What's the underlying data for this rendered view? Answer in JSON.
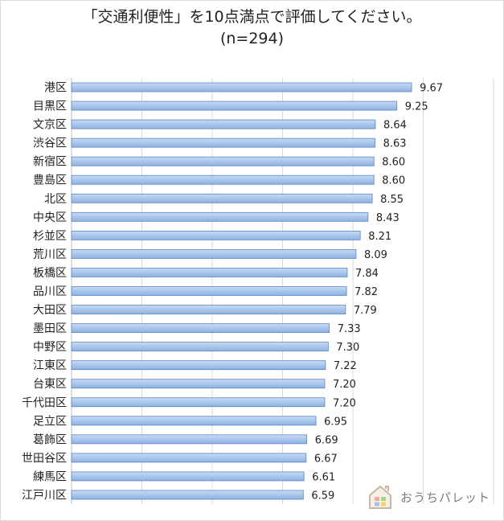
{
  "chart_data": {
    "type": "bar",
    "orientation": "horizontal",
    "title": "「交通利便性」を10点満点で評価してください。",
    "subtitle": "(n=294)",
    "categories": [
      "港区",
      "目黒区",
      "文京区",
      "渋谷区",
      "新宿区",
      "豊島区",
      "北区",
      "中央区",
      "杉並区",
      "荒川区",
      "板橋区",
      "品川区",
      "大田区",
      "墨田区",
      "中野区",
      "江東区",
      "台東区",
      "千代田区",
      "足立区",
      "葛飾区",
      "世田谷区",
      "練馬区",
      "江戸川区"
    ],
    "values": [
      9.67,
      9.25,
      8.64,
      8.63,
      8.6,
      8.6,
      8.55,
      8.43,
      8.21,
      8.09,
      7.84,
      7.82,
      7.79,
      7.33,
      7.3,
      7.22,
      7.2,
      7.2,
      6.95,
      6.69,
      6.67,
      6.61,
      6.59
    ],
    "value_labels": [
      "9.67",
      "9.25",
      "8.64",
      "8.63",
      "8.60",
      "8.60",
      "8.55",
      "8.43",
      "8.21",
      "8.09",
      "7.84",
      "7.82",
      "7.79",
      "7.33",
      "7.30",
      "7.22",
      "7.20",
      "7.20",
      "6.95",
      "6.69",
      "6.67",
      "6.61",
      "6.59"
    ],
    "xlim": [
      0,
      12
    ],
    "grid": true,
    "bar_color": "#9fbfe8"
  },
  "brand": {
    "name": "おうちパレット",
    "logo_icon": "house-icon"
  }
}
